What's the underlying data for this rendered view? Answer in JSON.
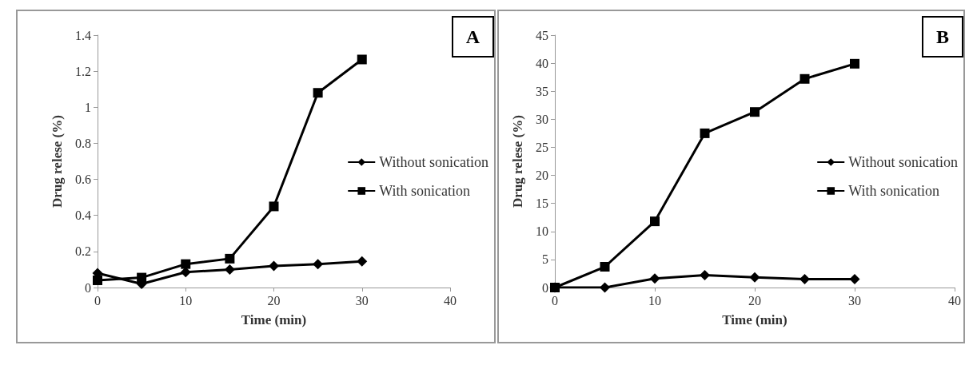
{
  "chart_data": [
    {
      "type": "line",
      "xlabel": "Time (min)",
      "ylabel": "Drug relese (%)",
      "annotations": [
        "A"
      ],
      "x": [
        0,
        5,
        10,
        15,
        20,
        25,
        30
      ],
      "xlim": [
        0,
        40
      ],
      "xticks": [
        0,
        10,
        20,
        30,
        40
      ],
      "ylim": [
        0,
        1.4
      ],
      "yticks": [
        0,
        0.2,
        0.4,
        0.6,
        0.8,
        1,
        1.2,
        1.4
      ],
      "grid": false,
      "legend": "right",
      "line_style": "solid",
      "series": [
        {
          "name": "Without sonication",
          "color": "#000000",
          "marker": "diamond",
          "values": [
            0.08,
            0.02,
            0.085,
            0.1,
            0.12,
            0.13,
            0.145
          ]
        },
        {
          "name": "With sonication",
          "color": "#000000",
          "marker": "square",
          "values": [
            0.04,
            0.055,
            0.13,
            0.16,
            0.45,
            1.08,
            1.265
          ]
        }
      ]
    },
    {
      "type": "line",
      "xlabel": "Time (min)",
      "ylabel": "Drug relese (%)",
      "annotations": [
        "B"
      ],
      "x": [
        0,
        5,
        10,
        15,
        20,
        25,
        30
      ],
      "xlim": [
        0,
        40
      ],
      "xticks": [
        0,
        10,
        20,
        30,
        40
      ],
      "ylim": [
        0,
        45
      ],
      "yticks": [
        0,
        5,
        10,
        15,
        20,
        25,
        30,
        35,
        40,
        45
      ],
      "grid": false,
      "legend": "right",
      "line_style": "solid",
      "series": [
        {
          "name": "Without sonication",
          "color": "#000000",
          "marker": "diamond",
          "values": [
            0,
            0,
            1.6,
            2.2,
            1.8,
            1.5,
            1.5
          ]
        },
        {
          "name": "With sonication",
          "color": "#000000",
          "marker": "square",
          "values": [
            0,
            3.7,
            11.8,
            27.5,
            31.3,
            37.2,
            39.9
          ]
        }
      ]
    }
  ]
}
